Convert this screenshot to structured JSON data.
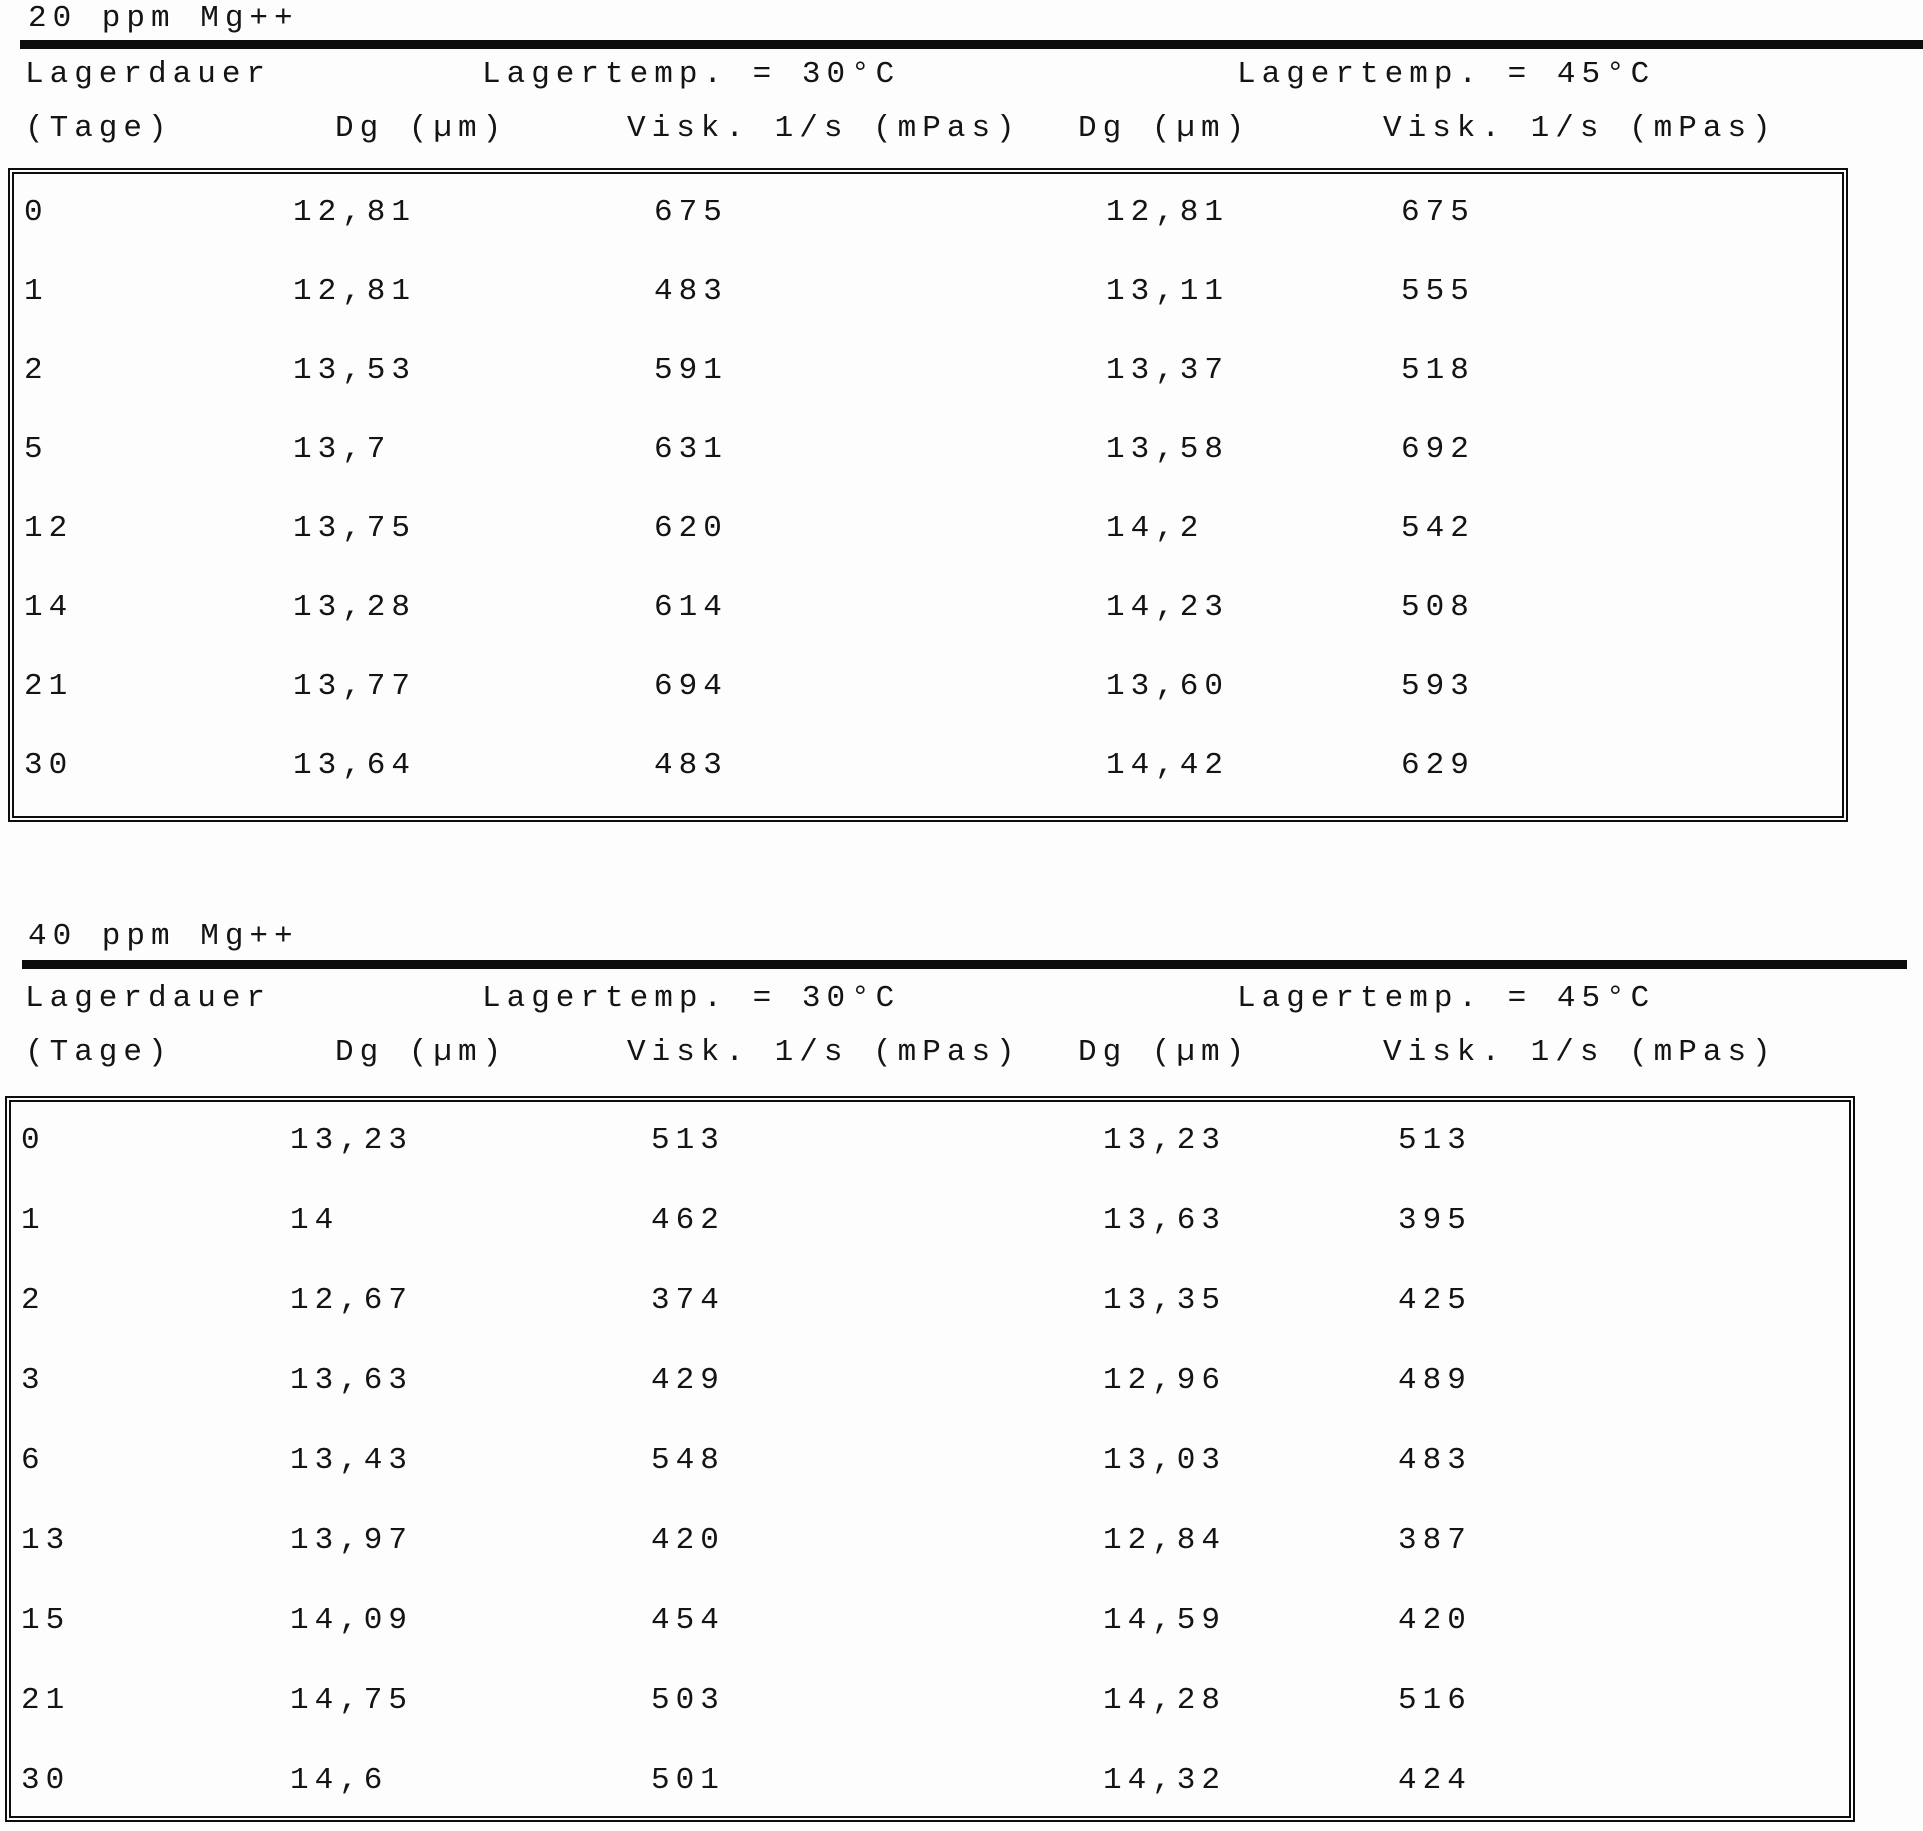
{
  "page": {
    "background": "#fdfdfd",
    "ink": "#141414"
  },
  "tables": [
    {
      "title": "20 ppm Mg++",
      "header": {
        "duration_line1": "Lagerdauer",
        "duration_line2": "(Tage)",
        "temp_30": "Lagertemp. = 30°C",
        "temp_45": "Lagertemp. = 45°C",
        "dg_30": "Dg (µm)",
        "visk_30": "Visk. 1/s (mPas)",
        "dg_45": "Dg (µm)",
        "visk_45": "Visk. 1/s (mPas)"
      },
      "rows": [
        [
          "0",
          "12,81",
          "675",
          "12,81",
          "675"
        ],
        [
          "1",
          "12,81",
          "483",
          "13,11",
          "555"
        ],
        [
          "2",
          "13,53",
          "591",
          "13,37",
          "518"
        ],
        [
          "5",
          "13,7",
          "631",
          "13,58",
          "692"
        ],
        [
          "12",
          "13,75",
          "620",
          "14,2",
          "542"
        ],
        [
          "14",
          "13,28",
          "614",
          "14,23",
          "508"
        ],
        [
          "21",
          "13,77",
          "694",
          "13,60",
          "593"
        ],
        [
          "30",
          "13,64",
          "483",
          "14,42",
          "629"
        ]
      ]
    },
    {
      "title": "40 ppm Mg++",
      "header": {
        "duration_line1": "Lagerdauer",
        "duration_line2": "(Tage)",
        "temp_30": "Lagertemp. = 30°C",
        "temp_45": "Lagertemp. = 45°C",
        "dg_30": "Dg (µm)",
        "visk_30": "Visk. 1/s (mPas)",
        "dg_45": "Dg (µm)",
        "visk_45": "Visk. 1/s (mPas)"
      },
      "rows": [
        [
          "0",
          "13,23",
          "513",
          "13,23",
          "513"
        ],
        [
          "1",
          "14",
          "462",
          "13,63",
          "395"
        ],
        [
          "2",
          "12,67",
          "374",
          "13,35",
          "425"
        ],
        [
          "3",
          "13,63",
          "429",
          "12,96",
          "489"
        ],
        [
          "6",
          "13,43",
          "548",
          "13,03",
          "483"
        ],
        [
          "13",
          "13,97",
          "420",
          "12,84",
          "387"
        ],
        [
          "15",
          "14,09",
          "454",
          "14,59",
          "420"
        ],
        [
          "21",
          "14,75",
          "503",
          "14,28",
          "516"
        ],
        [
          "30",
          "14,6",
          "501",
          "14,32",
          "424"
        ]
      ]
    }
  ]
}
